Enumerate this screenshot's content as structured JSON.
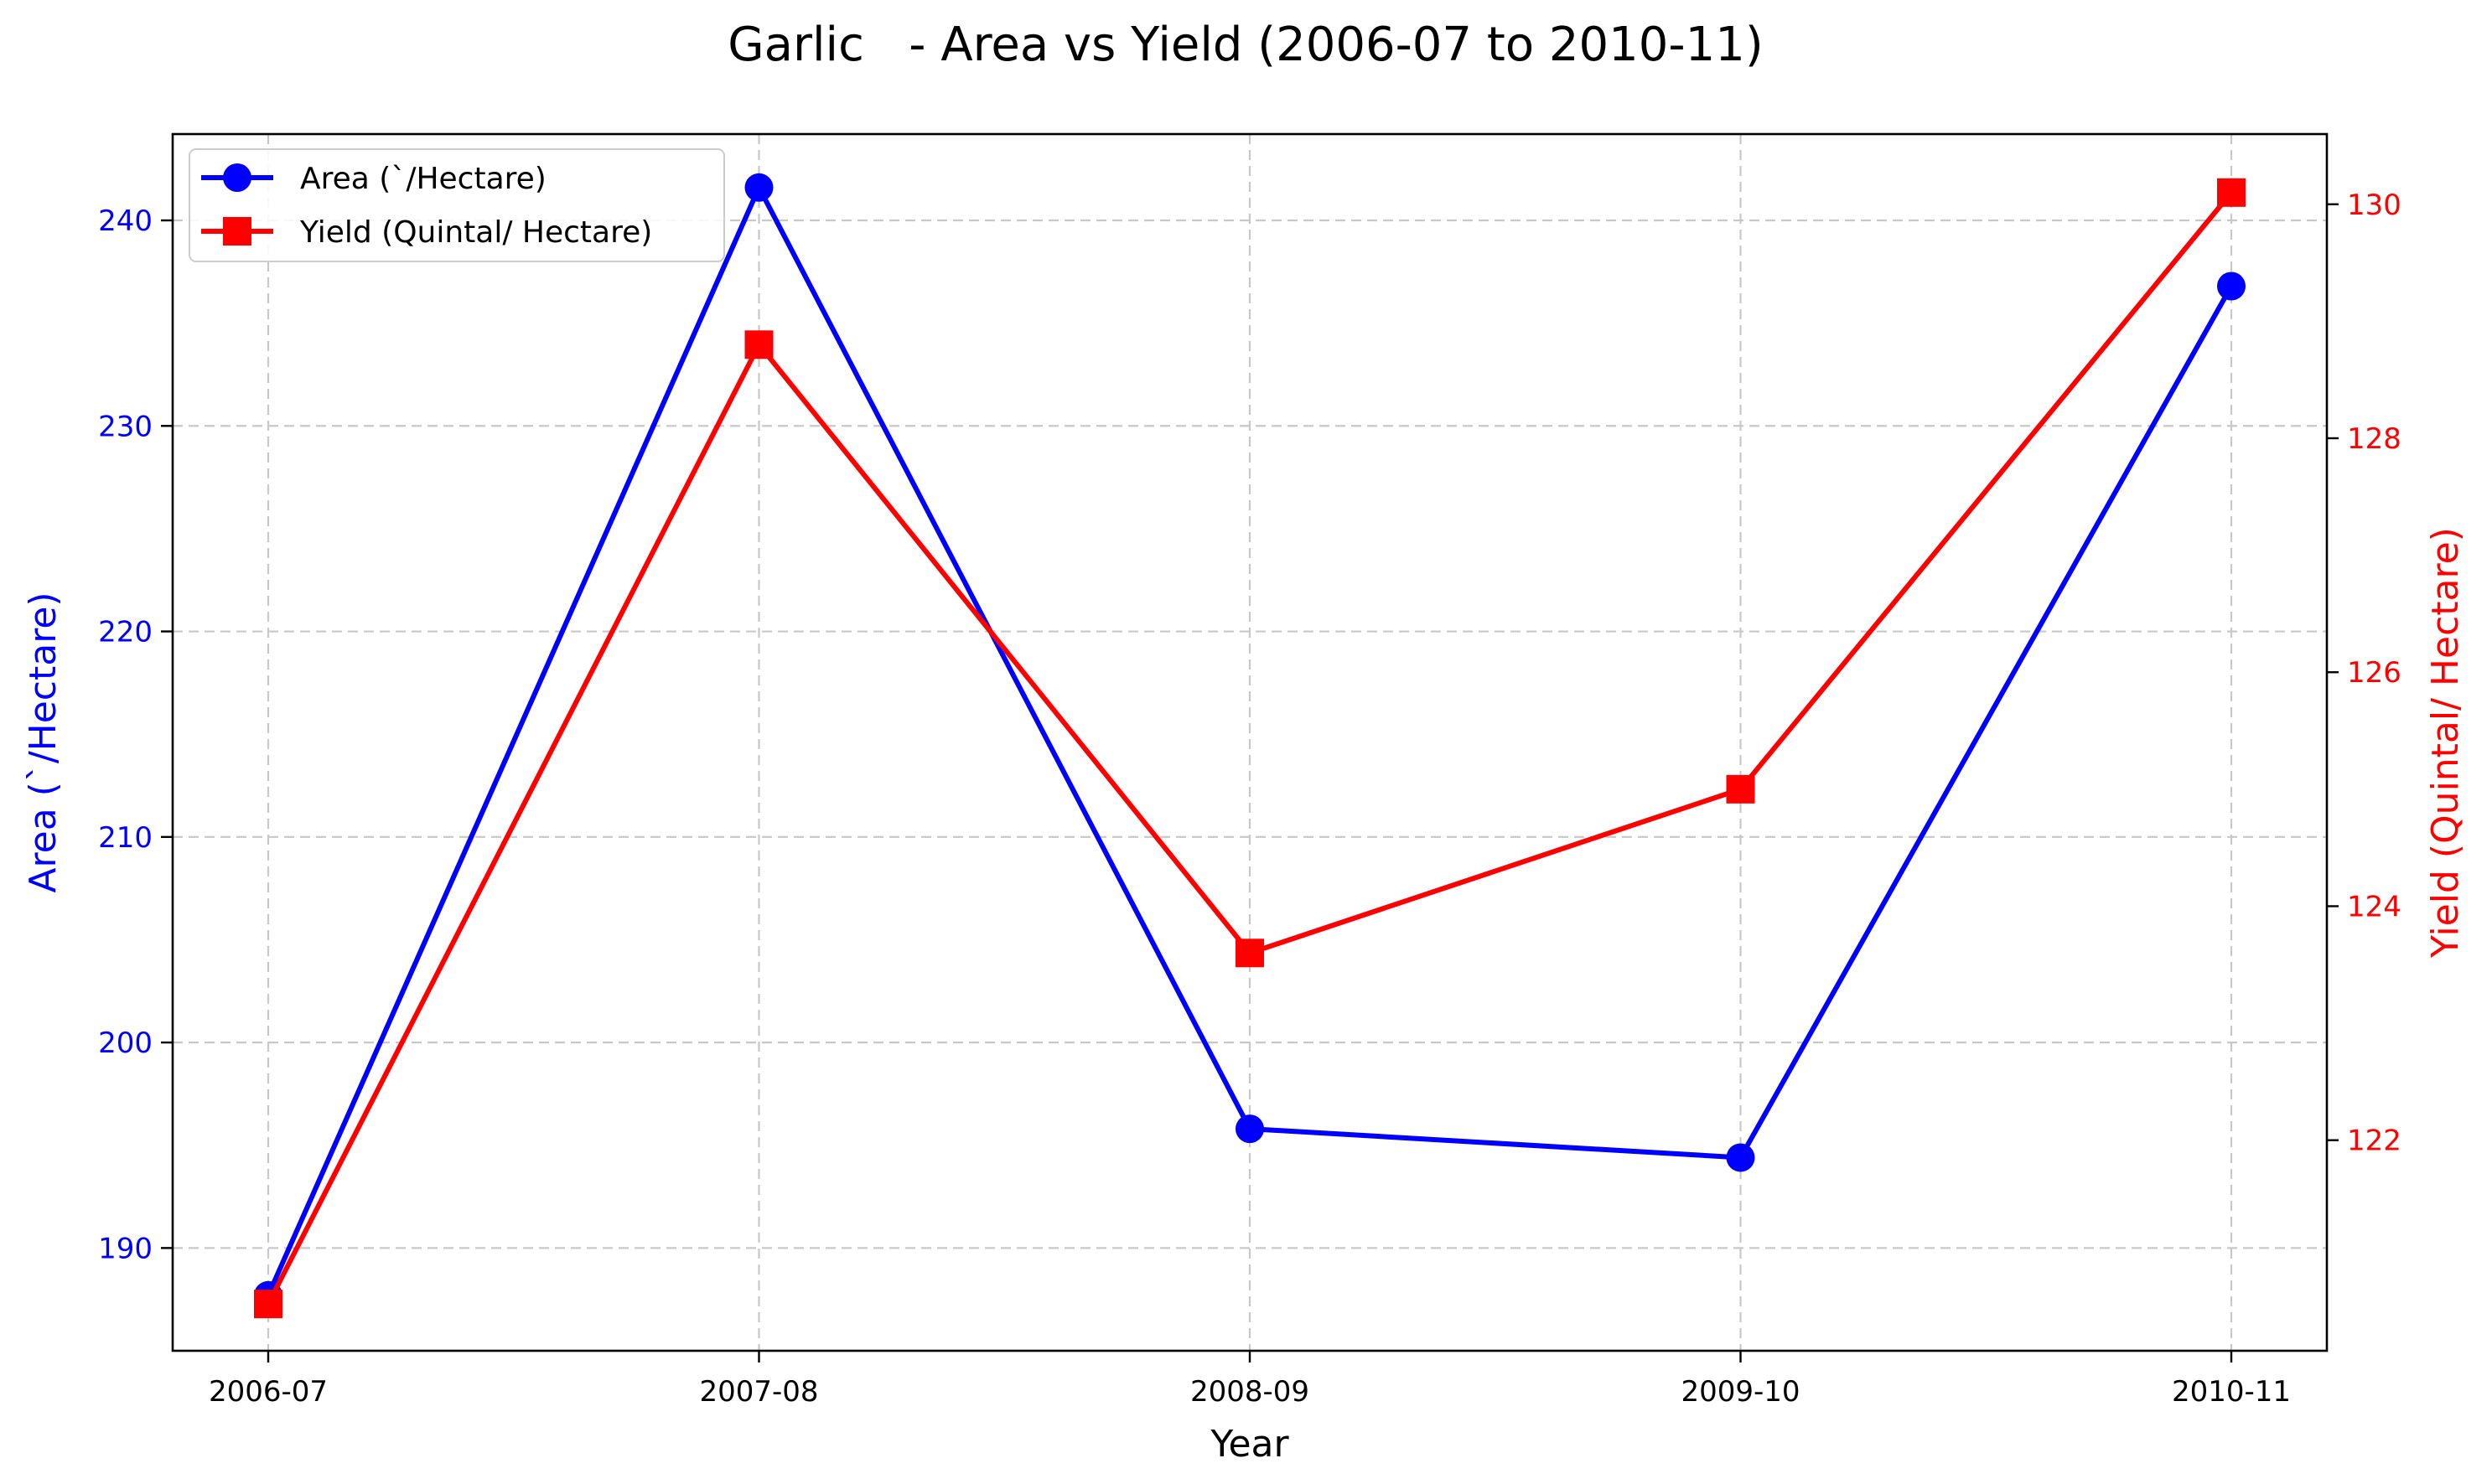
{
  "chart_data": {
    "type": "line",
    "title": "Garlic   - Area vs Yield (2006-07 to 2010-11)",
    "xlabel": "Year",
    "categories": [
      "2006-07",
      "2007-08",
      "2008-09",
      "2009-10",
      "2010-11"
    ],
    "y_left": {
      "label": "Area (`/Hectare)",
      "color": "#0000ff",
      "ylim": [
        185,
        244.2
      ],
      "ticks": [
        190,
        200,
        210,
        220,
        230,
        240
      ]
    },
    "y_right": {
      "label": "Yield (Quintal/ Hectare)",
      "color": "#ff0000",
      "ylim": [
        120.2,
        130.6
      ],
      "ticks": [
        122,
        124,
        126,
        128,
        130
      ]
    },
    "series": [
      {
        "name": "Area (`/Hectare)",
        "axis": "left",
        "color": "#0000ff",
        "marker": "circle",
        "values": [
          187.7,
          241.6,
          195.8,
          194.4,
          236.8
        ]
      },
      {
        "name": "Yield (Quintal/ Hectare)",
        "axis": "right",
        "color": "#ff0000",
        "marker": "square",
        "values": [
          120.6,
          128.8,
          123.6,
          125.0,
          130.1
        ]
      }
    ],
    "grid": true,
    "legend_position": "top-left"
  }
}
